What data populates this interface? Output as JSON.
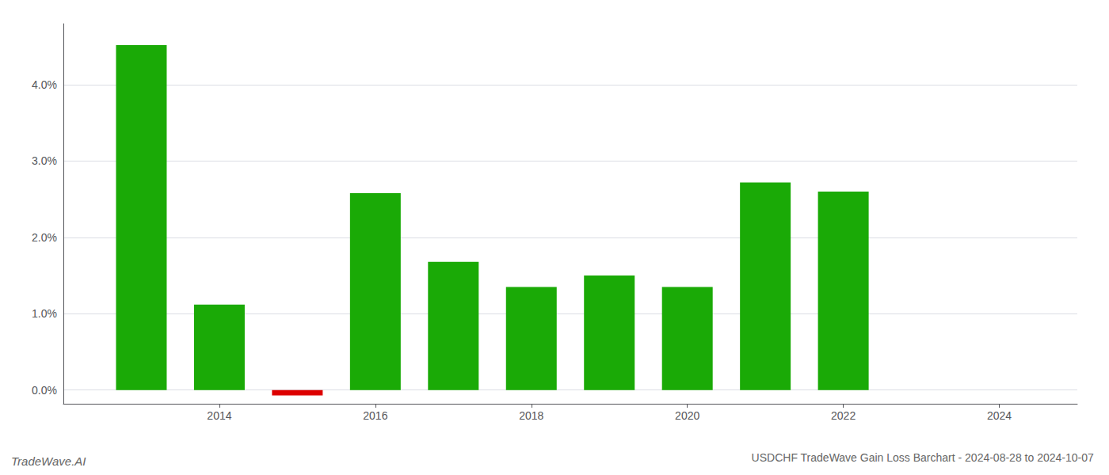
{
  "chart_data": {
    "type": "bar",
    "title": "USDCHF TradeWave Gain Loss Barchart - 2024-08-28 to 2024-10-07",
    "annotations": [
      "TradeWave.AI"
    ],
    "x": [
      2013,
      2014,
      2015,
      2016,
      2017,
      2018,
      2019,
      2020,
      2021,
      2022
    ],
    "values": [
      4.52,
      1.12,
      -0.07,
      2.58,
      1.68,
      1.35,
      1.5,
      1.35,
      2.72,
      2.6
    ],
    "colors": [
      "#1aaa06",
      "#1aaa06",
      "#dd0000",
      "#1aaa06",
      "#1aaa06",
      "#1aaa06",
      "#1aaa06",
      "#1aaa06",
      "#1aaa06",
      "#1aaa06"
    ],
    "xlim": [
      2012.0,
      2025.0
    ],
    "xticks": [
      2014,
      2016,
      2018,
      2020,
      2022,
      2024
    ],
    "ylim": [
      -0.18,
      4.8
    ],
    "yticks": [
      {
        "value": 0.0,
        "label": "0.0%"
      },
      {
        "value": 1.0,
        "label": "1.0%"
      },
      {
        "value": 2.0,
        "label": "2.0%"
      },
      {
        "value": 3.0,
        "label": "3.0%"
      },
      {
        "value": 4.0,
        "label": "4.0%"
      }
    ],
    "grid": true
  }
}
